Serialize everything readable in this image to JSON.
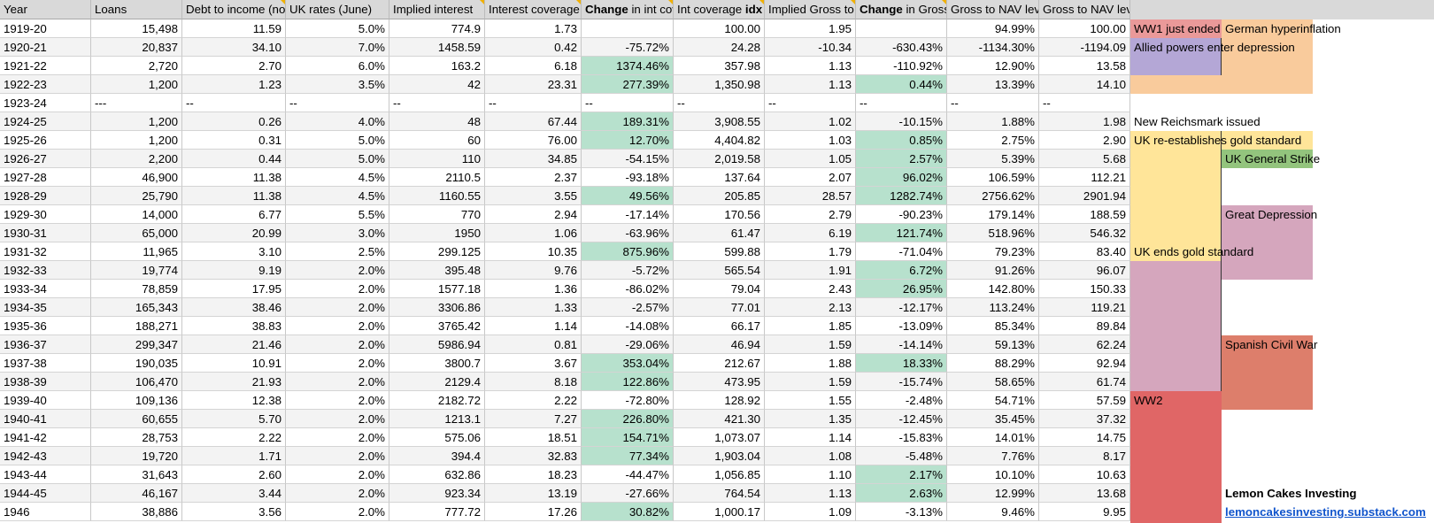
{
  "columns": [
    {
      "label": "Year",
      "parts": [
        {
          "t": "Year",
          "b": false
        }
      ]
    },
    {
      "label": "Loans",
      "parts": [
        {
          "t": "Loans",
          "b": false
        }
      ]
    },
    {
      "label": "Debt to income (nominal)",
      "parts": [
        {
          "t": "Debt to income (nominal)",
          "b": false
        }
      ]
    },
    {
      "label": "UK rates (June)",
      "parts": [
        {
          "t": "UK rates (June)",
          "b": false
        }
      ]
    },
    {
      "label": "Implied interest",
      "parts": [
        {
          "t": "Implied interest",
          "b": false
        }
      ]
    },
    {
      "label": "Interest coverage",
      "parts": [
        {
          "t": "Interest coverage",
          "b": false
        }
      ]
    },
    {
      "label": "Change in int coverage",
      "parts": [
        {
          "t": "Change",
          "b": true
        },
        {
          "t": " in int coverage",
          "b": false
        }
      ]
    },
    {
      "label": "Int coverage idx",
      "parts": [
        {
          "t": "Int coverage ",
          "b": false
        },
        {
          "t": "idx",
          "b": true
        }
      ]
    },
    {
      "label": "Implied Gross to NAV leverage",
      "parts": [
        {
          "t": "Implied Gross to NAV leverage",
          "b": false
        }
      ]
    },
    {
      "label": "Change in Gross to NAV leverage",
      "parts": [
        {
          "t": "Change",
          "b": true
        },
        {
          "t": " in Gross to NAV leverage",
          "b": false
        }
      ]
    },
    {
      "label": "Gross to NAV leverage",
      "parts": [
        {
          "t": "Gross to NAV leverage",
          "b": false
        }
      ]
    },
    {
      "label": "Gross to NAV leverage idx",
      "parts": [
        {
          "t": "Gross to NAV leverage ",
          "b": false
        },
        {
          "t": "idx",
          "b": true
        }
      ]
    }
  ],
  "rows": [
    {
      "c": [
        "1919-20",
        "15,498",
        "11.59",
        "5.0%",
        "774.9",
        "1.73",
        "",
        "100.00",
        "1.95",
        "",
        "94.99%",
        "100.00"
      ],
      "g": []
    },
    {
      "c": [
        "1920-21",
        "20,837",
        "34.10",
        "7.0%",
        "1458.59",
        "0.42",
        "-75.72%",
        "24.28",
        "-10.34",
        "-630.43%",
        "-1134.30%",
        "-1194.09"
      ],
      "g": []
    },
    {
      "c": [
        "1921-22",
        "2,720",
        "2.70",
        "6.0%",
        "163.2",
        "6.18",
        "1374.46%",
        "357.98",
        "1.13",
        "-110.92%",
        "12.90%",
        "13.58"
      ],
      "g": [
        6
      ]
    },
    {
      "c": [
        "1922-23",
        "1,200",
        "1.23",
        "3.5%",
        "42",
        "23.31",
        "277.39%",
        "1,350.98",
        "1.13",
        "0.44%",
        "13.39%",
        "14.10"
      ],
      "g": [
        6,
        9
      ]
    },
    {
      "c": [
        "1923-24",
        "---",
        "--",
        "--",
        "--",
        "--",
        "--",
        "--",
        "--",
        "--",
        "--",
        "--"
      ],
      "g": []
    },
    {
      "c": [
        "1924-25",
        "1,200",
        "0.26",
        "4.0%",
        "48",
        "67.44",
        "189.31%",
        "3,908.55",
        "1.02",
        "-10.15%",
        "1.88%",
        "1.98"
      ],
      "g": [
        6
      ]
    },
    {
      "c": [
        "1925-26",
        "1,200",
        "0.31",
        "5.0%",
        "60",
        "76.00",
        "12.70%",
        "4,404.82",
        "1.03",
        "0.85%",
        "2.75%",
        "2.90"
      ],
      "g": [
        6,
        9
      ]
    },
    {
      "c": [
        "1926-27",
        "2,200",
        "0.44",
        "5.0%",
        "110",
        "34.85",
        "-54.15%",
        "2,019.58",
        "1.05",
        "2.57%",
        "5.39%",
        "5.68"
      ],
      "g": [
        9
      ]
    },
    {
      "c": [
        "1927-28",
        "46,900",
        "11.38",
        "4.5%",
        "2110.5",
        "2.37",
        "-93.18%",
        "137.64",
        "2.07",
        "96.02%",
        "106.59%",
        "112.21"
      ],
      "g": [
        9
      ]
    },
    {
      "c": [
        "1928-29",
        "25,790",
        "11.38",
        "4.5%",
        "1160.55",
        "3.55",
        "49.56%",
        "205.85",
        "28.57",
        "1282.74%",
        "2756.62%",
        "2901.94"
      ],
      "g": [
        6,
        9
      ]
    },
    {
      "c": [
        "1929-30",
        "14,000",
        "6.77",
        "5.5%",
        "770",
        "2.94",
        "-17.14%",
        "170.56",
        "2.79",
        "-90.23%",
        "179.14%",
        "188.59"
      ],
      "g": []
    },
    {
      "c": [
        "1930-31",
        "65,000",
        "20.99",
        "3.0%",
        "1950",
        "1.06",
        "-63.96%",
        "61.47",
        "6.19",
        "121.74%",
        "518.96%",
        "546.32"
      ],
      "g": [
        9
      ]
    },
    {
      "c": [
        "1931-32",
        "11,965",
        "3.10",
        "2.5%",
        "299.125",
        "10.35",
        "875.96%",
        "599.88",
        "1.79",
        "-71.04%",
        "79.23%",
        "83.40"
      ],
      "g": [
        6
      ]
    },
    {
      "c": [
        "1932-33",
        "19,774",
        "9.19",
        "2.0%",
        "395.48",
        "9.76",
        "-5.72%",
        "565.54",
        "1.91",
        "6.72%",
        "91.26%",
        "96.07"
      ],
      "g": [
        9
      ]
    },
    {
      "c": [
        "1933-34",
        "78,859",
        "17.95",
        "2.0%",
        "1577.18",
        "1.36",
        "-86.02%",
        "79.04",
        "2.43",
        "26.95%",
        "142.80%",
        "150.33"
      ],
      "g": [
        9
      ]
    },
    {
      "c": [
        "1934-35",
        "165,343",
        "38.46",
        "2.0%",
        "3306.86",
        "1.33",
        "-2.57%",
        "77.01",
        "2.13",
        "-12.17%",
        "113.24%",
        "119.21"
      ],
      "g": []
    },
    {
      "c": [
        "1935-36",
        "188,271",
        "38.83",
        "2.0%",
        "3765.42",
        "1.14",
        "-14.08%",
        "66.17",
        "1.85",
        "-13.09%",
        "85.34%",
        "89.84"
      ],
      "g": []
    },
    {
      "c": [
        "1936-37",
        "299,347",
        "21.46",
        "2.0%",
        "5986.94",
        "0.81",
        "-29.06%",
        "46.94",
        "1.59",
        "-14.14%",
        "59.13%",
        "62.24"
      ],
      "g": []
    },
    {
      "c": [
        "1937-38",
        "190,035",
        "10.91",
        "2.0%",
        "3800.7",
        "3.67",
        "353.04%",
        "212.67",
        "1.88",
        "18.33%",
        "88.29%",
        "92.94"
      ],
      "g": [
        6,
        9
      ]
    },
    {
      "c": [
        "1938-39",
        "106,470",
        "21.93",
        "2.0%",
        "2129.4",
        "8.18",
        "122.86%",
        "473.95",
        "1.59",
        "-15.74%",
        "58.65%",
        "61.74"
      ],
      "g": [
        6
      ]
    },
    {
      "c": [
        "1939-40",
        "109,136",
        "12.38",
        "2.0%",
        "2182.72",
        "2.22",
        "-72.80%",
        "128.92",
        "1.55",
        "-2.48%",
        "54.71%",
        "57.59"
      ],
      "g": []
    },
    {
      "c": [
        "1940-41",
        "60,655",
        "5.70",
        "2.0%",
        "1213.1",
        "7.27",
        "226.80%",
        "421.30",
        "1.35",
        "-12.45%",
        "35.45%",
        "37.32"
      ],
      "g": [
        6
      ]
    },
    {
      "c": [
        "1941-42",
        "28,753",
        "2.22",
        "2.0%",
        "575.06",
        "18.51",
        "154.71%",
        "1,073.07",
        "1.14",
        "-15.83%",
        "14.01%",
        "14.75"
      ],
      "g": [
        6
      ]
    },
    {
      "c": [
        "1942-43",
        "19,720",
        "1.71",
        "2.0%",
        "394.4",
        "32.83",
        "77.34%",
        "1,903.04",
        "1.08",
        "-5.48%",
        "7.76%",
        "8.17"
      ],
      "g": [
        6
      ]
    },
    {
      "c": [
        "1943-44",
        "31,643",
        "2.60",
        "2.0%",
        "632.86",
        "18.23",
        "-44.47%",
        "1,056.85",
        "1.10",
        "2.17%",
        "10.10%",
        "10.63"
      ],
      "g": [
        9
      ]
    },
    {
      "c": [
        "1944-45",
        "46,167",
        "3.44",
        "2.0%",
        "923.34",
        "13.19",
        "-27.66%",
        "764.54",
        "1.13",
        "2.63%",
        "12.99%",
        "13.68"
      ],
      "g": [
        9
      ]
    },
    {
      "c": [
        "1946",
        "38,886",
        "3.56",
        "2.0%",
        "777.72",
        "17.26",
        "30.82%",
        "1,000.17",
        "1.09",
        "-3.13%",
        "9.46%",
        "9.95"
      ],
      "g": [
        6
      ]
    }
  ],
  "annotations": {
    "ww1": "WW1 just ended",
    "german_hyperinflation": "German hyperinflation",
    "allied_depression": "Allied powers enter depression",
    "reichsmark": "New Reichsmark issued",
    "uk_gold": "UK re-establishes gold standard",
    "general_strike": "UK General Strike",
    "great_depression": "Great Depression",
    "uk_ends_gold": "UK ends gold standard",
    "spanish_civil_war": "Spanish Civil War",
    "ww2": "WW2"
  },
  "branding": {
    "name": "Lemon Cakes Investing",
    "link": "lemoncakesinvesting.substack.com"
  },
  "colors": {
    "highlight_green": "#b7e1cd",
    "ww1": "#ea9999",
    "hyperinflation": "#f9cb9c",
    "depression": "#b4a7d6",
    "gold_standard": "#ffe599",
    "general_strike": "#93c47d",
    "great_depression": "#d5a6bd",
    "spanish_civil_war": "#dd7e6b",
    "ww2": "#e06666",
    "link": "#1155cc"
  }
}
